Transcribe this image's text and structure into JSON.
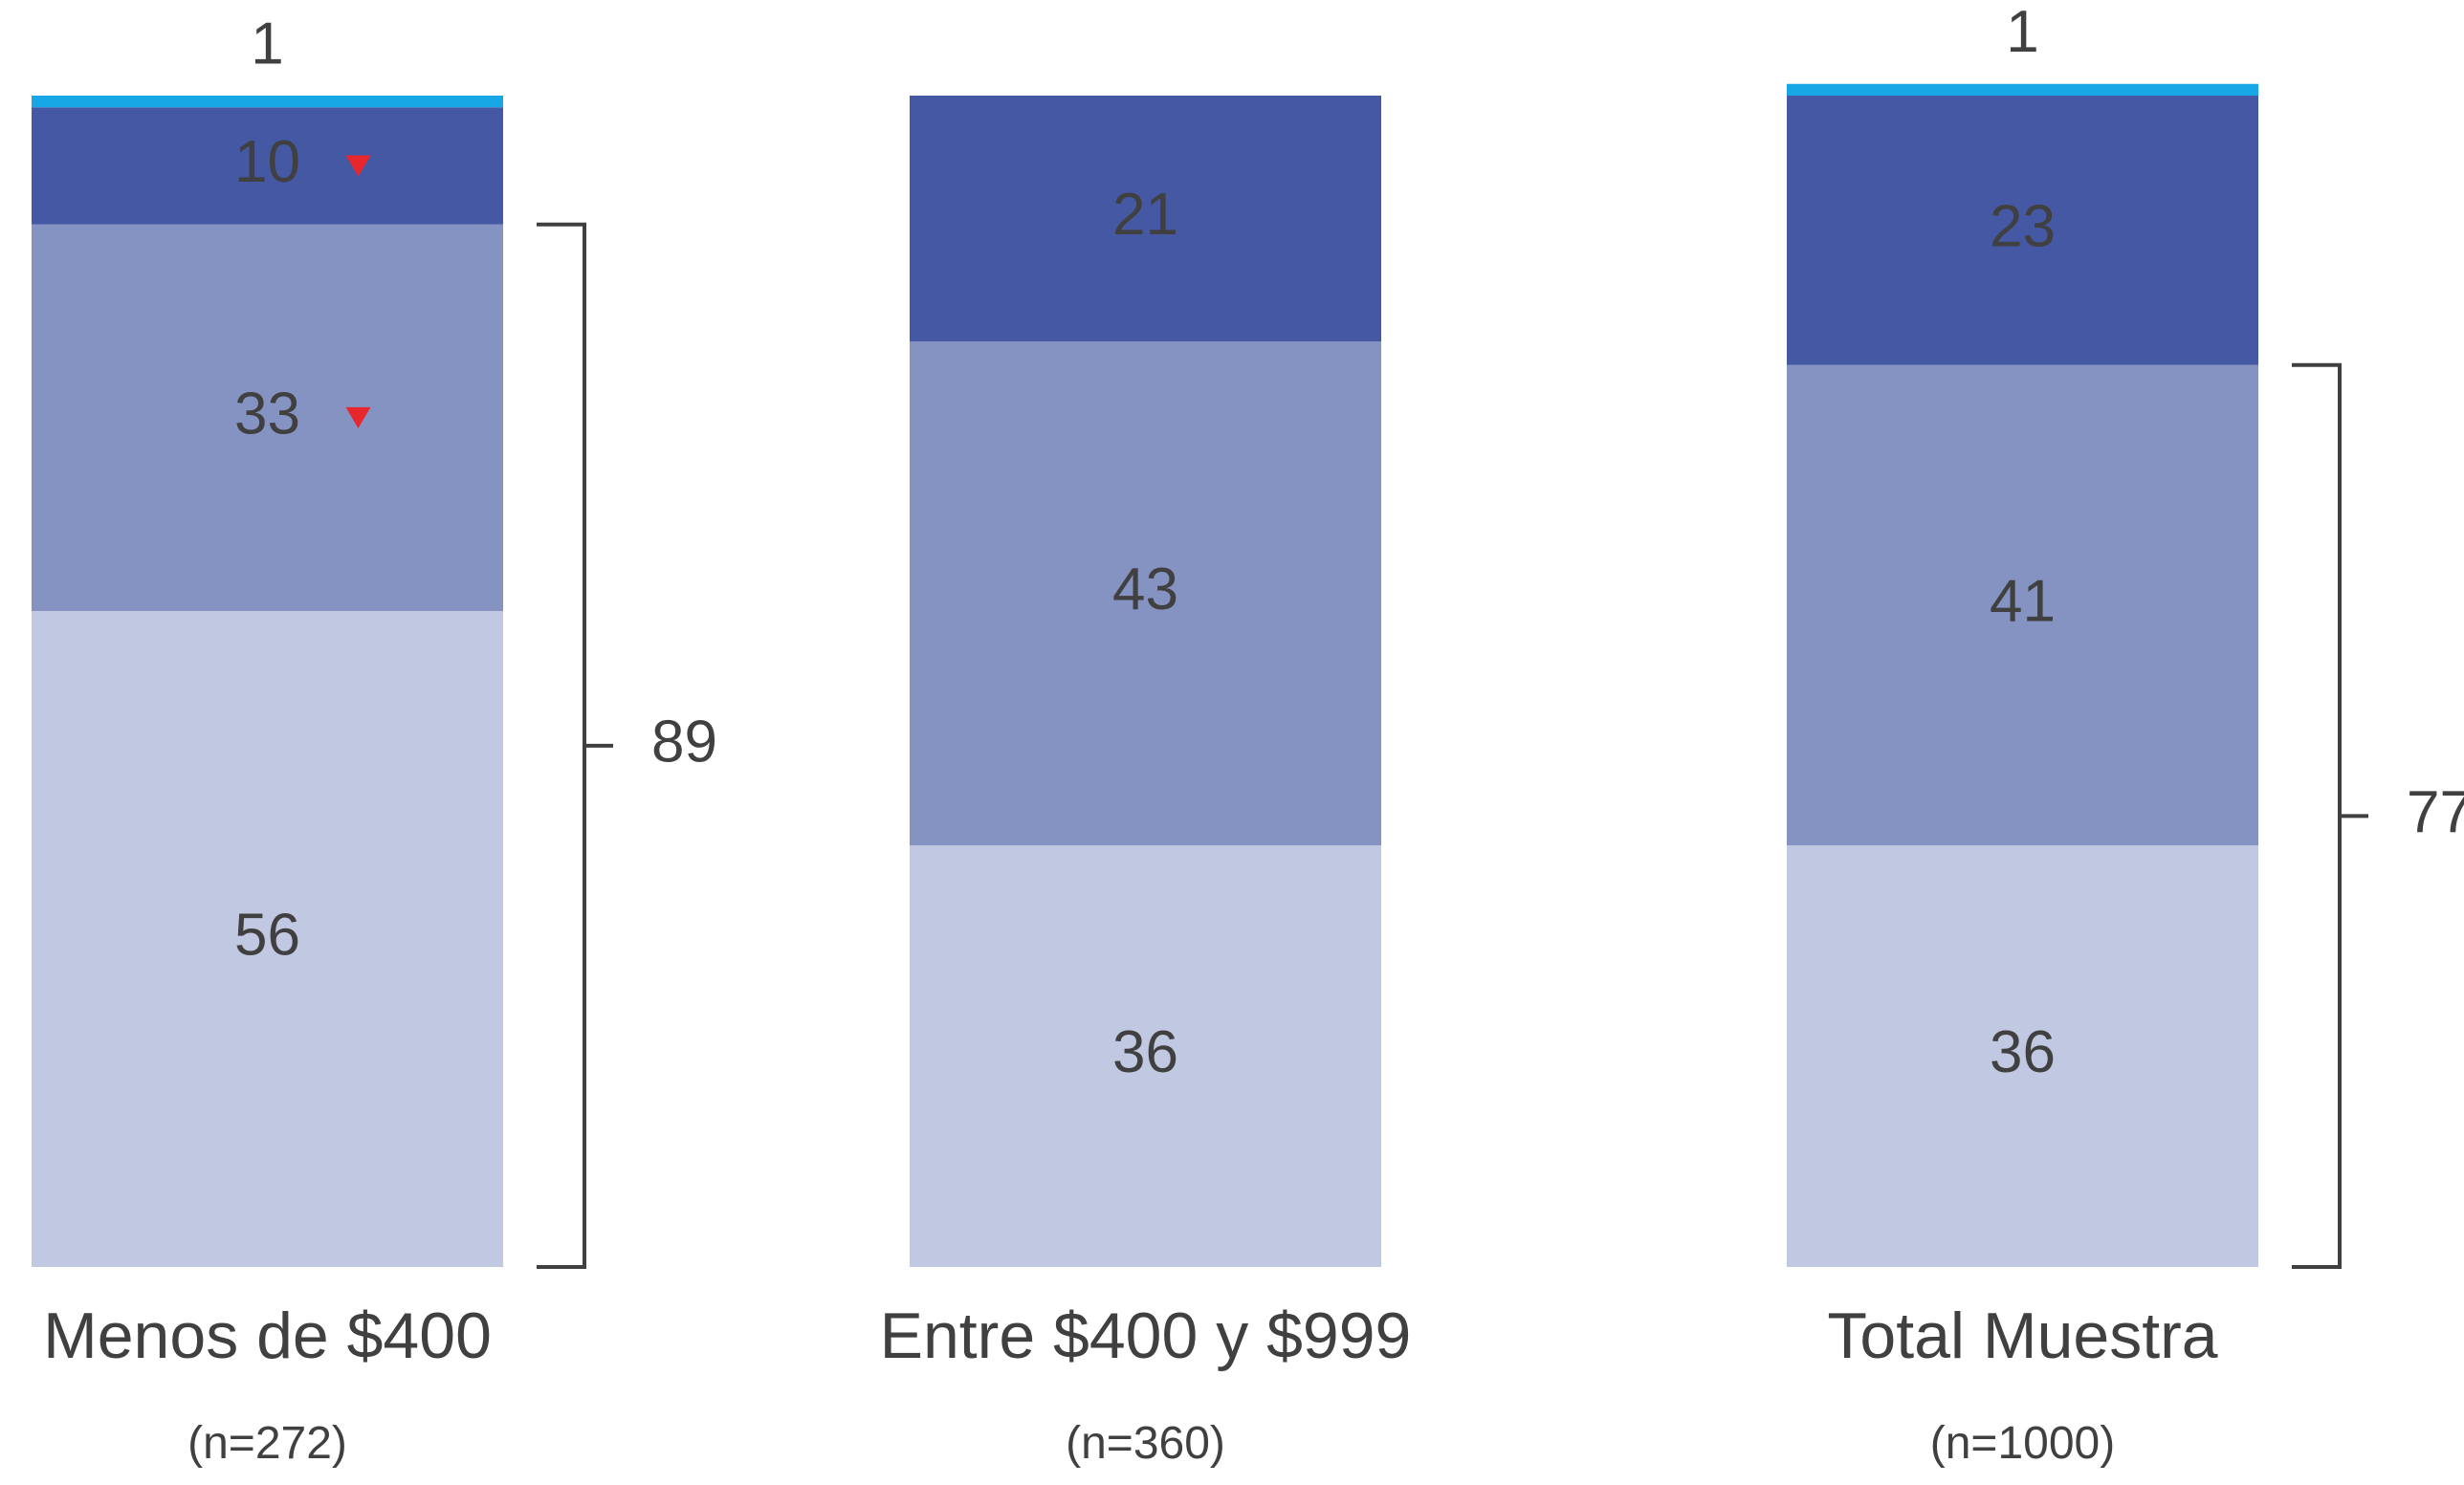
{
  "chart_data": {
    "type": "bar",
    "stacked": true,
    "orientation": "vertical",
    "categories": [
      "Menos de $400",
      "Entre $400 y $999",
      "Total Muestra"
    ],
    "sample_sizes": [
      "(n=272)",
      "(n=360)",
      "(n=1000)"
    ],
    "series": [
      {
        "values": [
          56,
          36,
          36
        ],
        "color": "#c1c8e1",
        "label_color": "#404040"
      },
      {
        "values": [
          33,
          43,
          41
        ],
        "color": "#8593c3",
        "label_color": "#404040"
      },
      {
        "values": [
          10,
          21,
          23
        ],
        "color": "#4458a4",
        "label_color": "#ffffff"
      },
      {
        "values": [
          1,
          0,
          1
        ],
        "color": "#17a6e6",
        "label_color": "#404040",
        "label_above": true
      }
    ],
    "significance_markers": [
      {
        "category": 0,
        "series": 1,
        "symbol": "down-triangle",
        "color": "#e8262d"
      },
      {
        "category": 0,
        "series": 2,
        "symbol": "down-triangle",
        "color": "#e8262d"
      }
    ],
    "brackets": [
      {
        "category": 0,
        "series": [
          0,
          1
        ],
        "value": "89"
      },
      {
        "category": 2,
        "series": [
          0,
          1
        ],
        "value": "77"
      }
    ],
    "xlabel": "",
    "ylabel": "",
    "ylim": [
      0,
      100
    ],
    "grid": false,
    "legend": "none"
  }
}
